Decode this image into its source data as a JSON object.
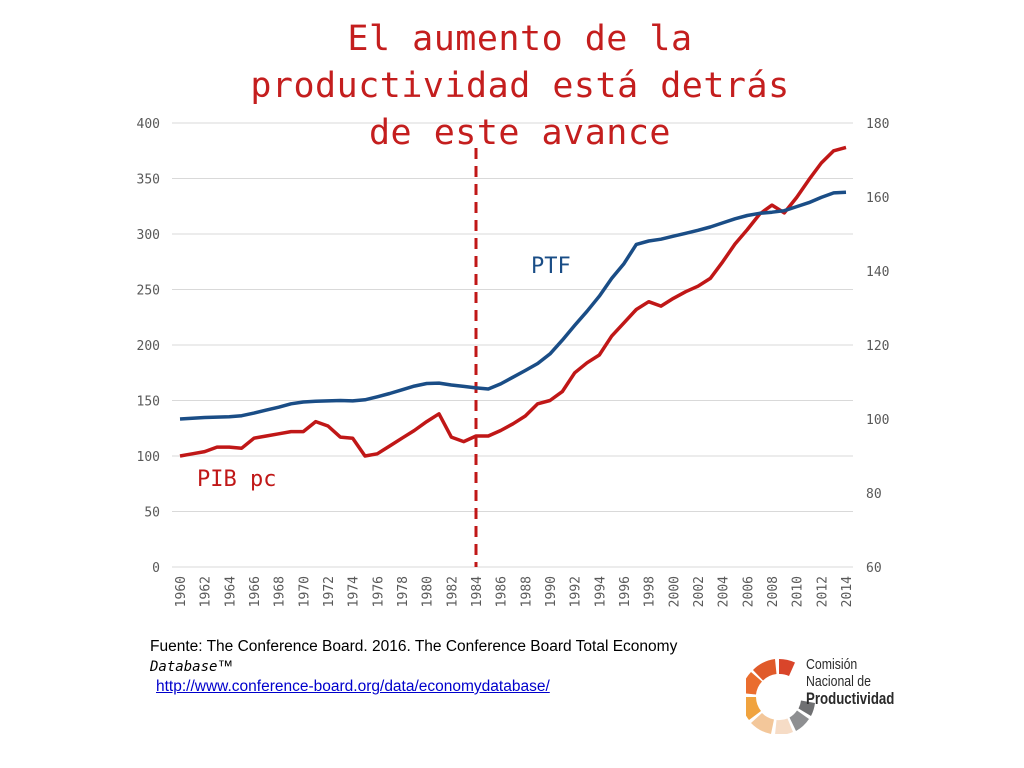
{
  "slide": {
    "title_lines": [
      "El aumento de la",
      "productividad está detrás",
      "de este avance"
    ],
    "source_text": "Fuente: The Conference Board. 2016. The Conference Board Total Economy",
    "source_db": "Database",
    "source_tm": "™",
    "source_url": "http://www.conference-board.org/data/economydatabase/",
    "logo": {
      "line1": "Comisión",
      "line2": "Nacional de",
      "line3": "Productividad"
    }
  },
  "chart_data": {
    "type": "line",
    "x": [
      1960,
      1961,
      1962,
      1963,
      1964,
      1965,
      1966,
      1967,
      1968,
      1969,
      1970,
      1971,
      1972,
      1973,
      1974,
      1975,
      1976,
      1977,
      1978,
      1979,
      1980,
      1981,
      1982,
      1983,
      1984,
      1985,
      1986,
      1987,
      1988,
      1989,
      1990,
      1991,
      1992,
      1993,
      1994,
      1995,
      1996,
      1997,
      1998,
      1999,
      2000,
      2001,
      2002,
      2003,
      2004,
      2005,
      2006,
      2007,
      2008,
      2009,
      2010,
      2011,
      2012,
      2013,
      2014
    ],
    "x_tick_labels": [
      "1960",
      "1962",
      "1964",
      "1966",
      "1968",
      "1970",
      "1972",
      "1974",
      "1976",
      "1978",
      "1980",
      "1982",
      "1984",
      "1986",
      "1988",
      "1990",
      "1992",
      "1994",
      "1996",
      "1998",
      "2000",
      "2002",
      "2004",
      "2006",
      "2008",
      "2010",
      "2012",
      "2014"
    ],
    "left_axis": {
      "ylim": [
        0,
        400
      ],
      "ticks": [
        "0",
        "50",
        "100",
        "150",
        "200",
        "250",
        "300",
        "350",
        "400"
      ]
    },
    "right_axis": {
      "ylim": [
        60,
        180
      ],
      "ticks": [
        "60",
        "80",
        "100",
        "120",
        "140",
        "160",
        "180"
      ]
    },
    "grid": true,
    "series": [
      {
        "name": "PIB pc",
        "axis": "left",
        "color": "#c01717",
        "values": [
          100,
          102,
          104,
          108,
          108,
          107,
          116,
          118,
          120,
          122,
          122,
          131,
          127,
          117,
          116,
          100,
          102,
          109,
          116,
          123,
          131,
          138,
          117,
          113,
          118,
          118,
          123,
          129,
          136,
          147,
          150,
          158,
          175,
          184,
          191,
          208,
          220,
          232,
          239,
          235,
          242,
          248,
          253,
          260,
          275,
          291,
          304,
          318,
          326,
          319,
          333,
          349,
          364,
          375,
          378
        ]
      },
      {
        "name": "PTF",
        "axis": "right",
        "color": "#1a4d86",
        "values": [
          100.0,
          100.2,
          100.4,
          100.5,
          100.6,
          100.9,
          101.6,
          102.4,
          103.2,
          104.1,
          104.6,
          104.8,
          104.9,
          105.0,
          104.9,
          105.2,
          106.0,
          106.9,
          107.9,
          108.9,
          109.6,
          109.7,
          109.2,
          108.8,
          108.4,
          108.1,
          109.5,
          111.3,
          113.1,
          115.0,
          117.6,
          121.3,
          125.3,
          129.1,
          133.2,
          138.0,
          142.0,
          147.2,
          148.1,
          148.6,
          149.4,
          150.2,
          151.0,
          151.9,
          153.0,
          154.1,
          155.0,
          155.6,
          155.9,
          156.3,
          157.4,
          158.5,
          159.9,
          161.1,
          161.3
        ]
      }
    ],
    "annotations": [
      {
        "text": "PTF",
        "series": "PTF",
        "color": "#1a4d86"
      },
      {
        "text": "PIB pc",
        "series": "PIB pc",
        "color": "#c01717"
      },
      {
        "type": "vertical-dashed-line",
        "x": 1984,
        "color": "#c01717"
      }
    ]
  }
}
